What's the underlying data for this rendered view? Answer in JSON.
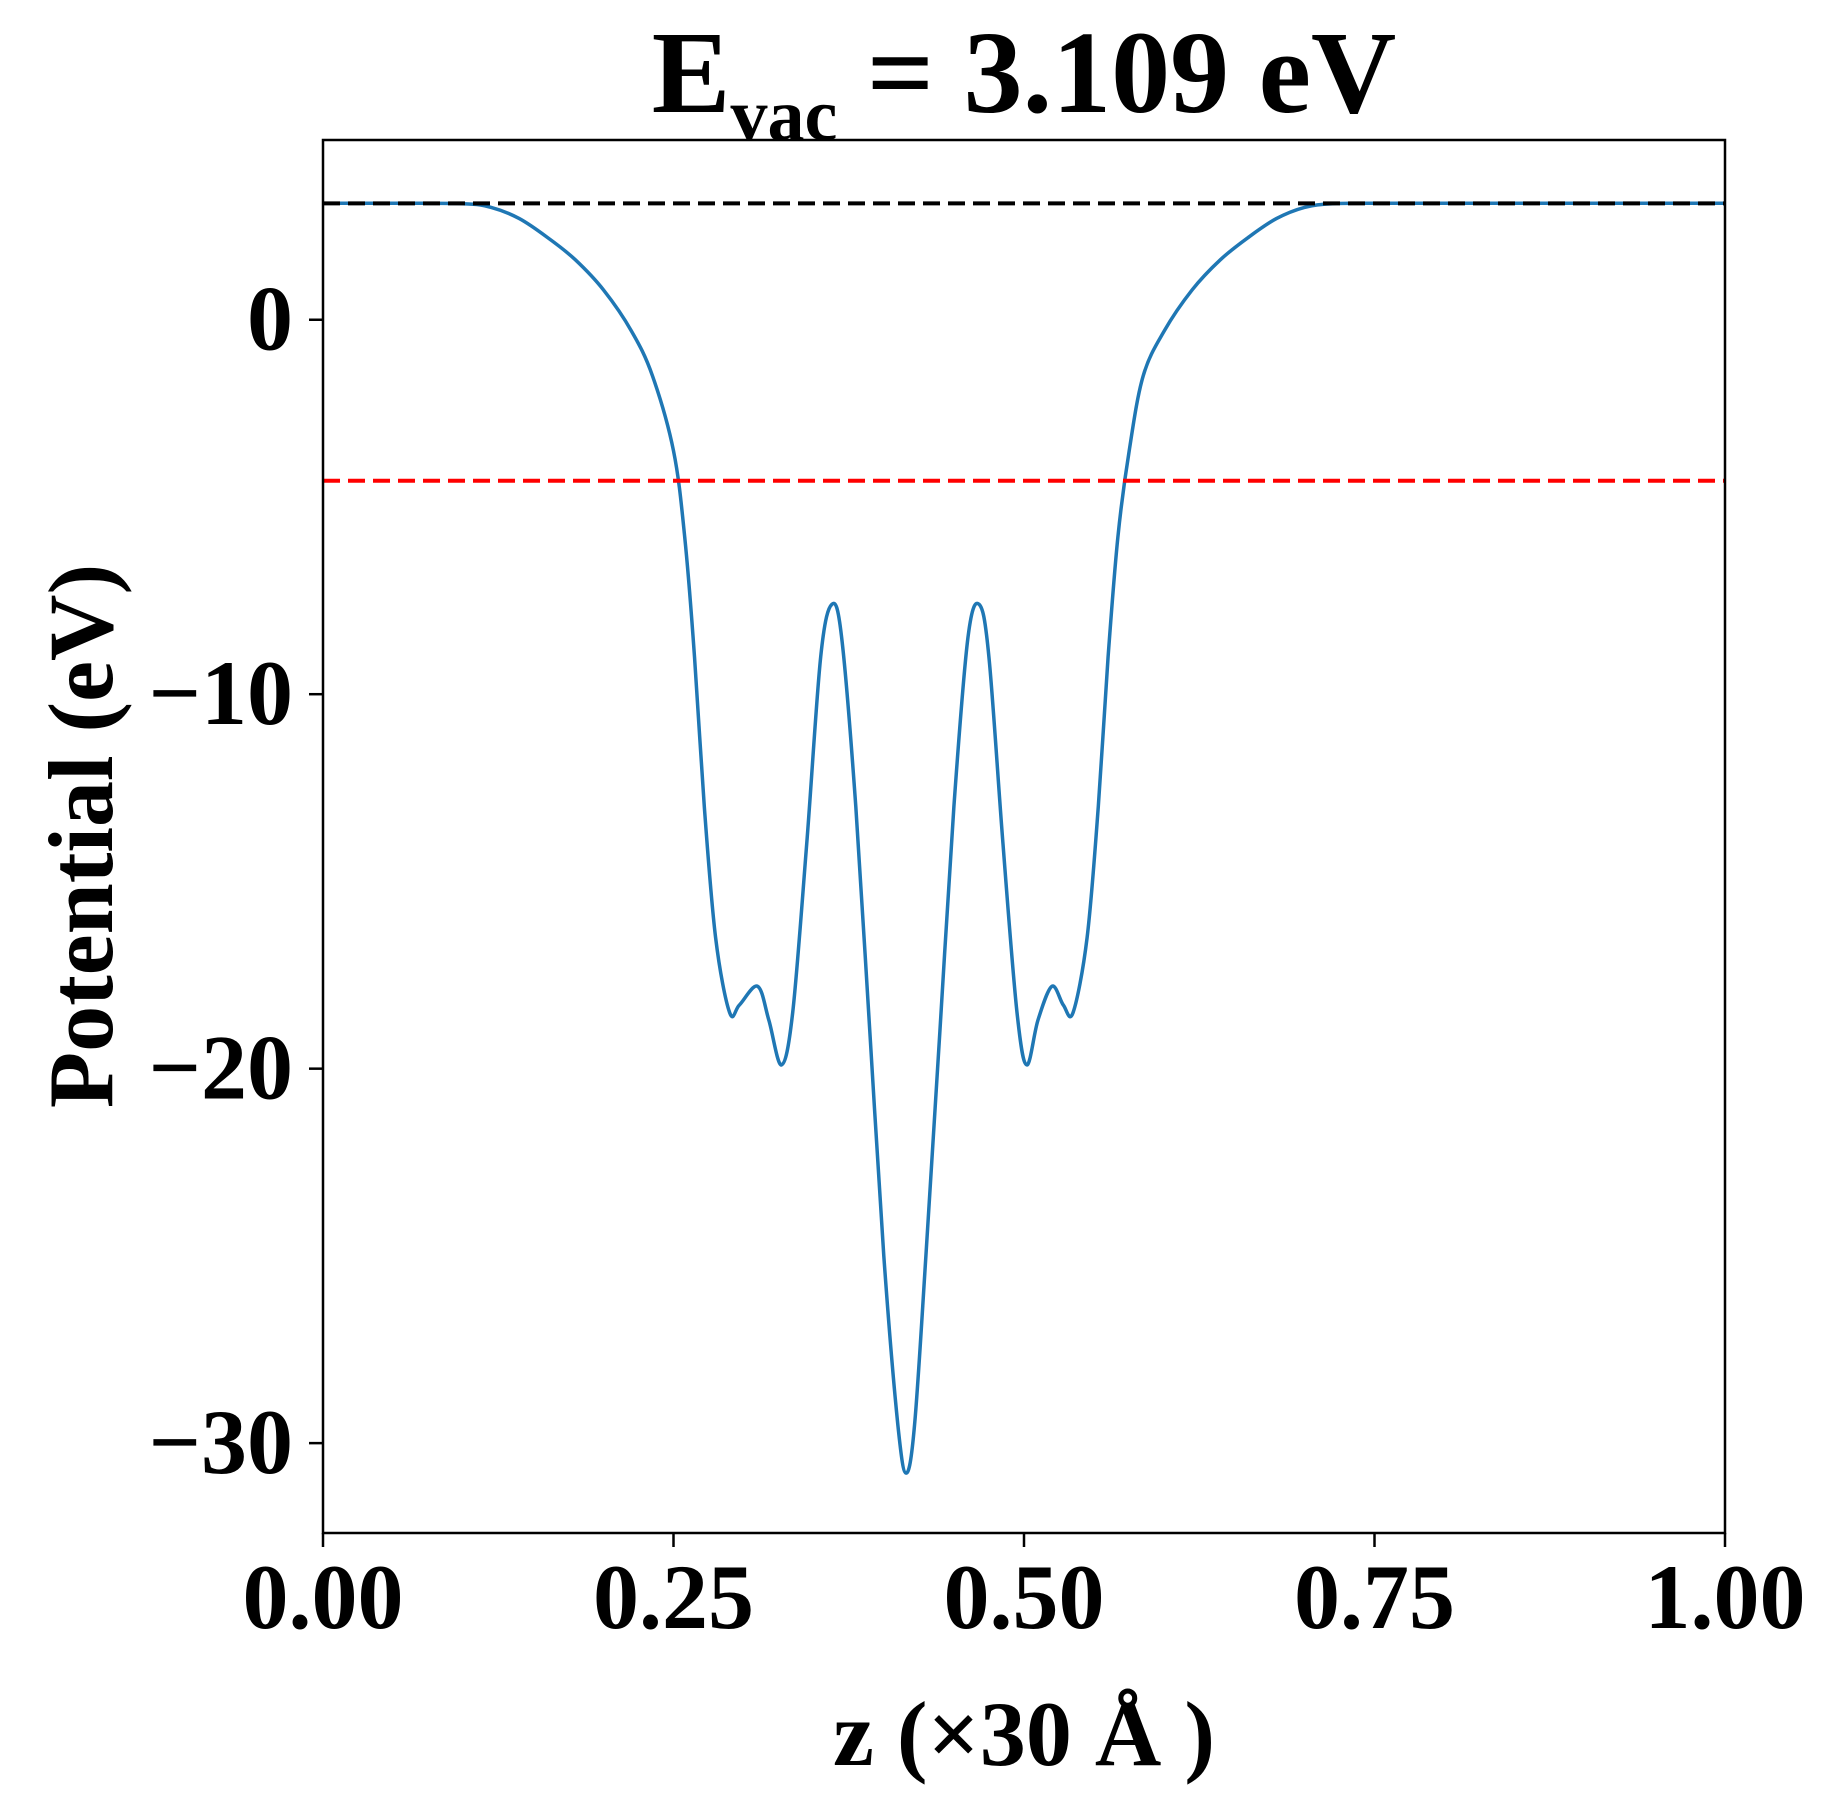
{
  "chart_data": {
    "type": "line",
    "title": {
      "main": "E",
      "subscript": "vac",
      "rest": " = 3.109 eV"
    },
    "xlabel": "z (×30 Å )",
    "ylabel": "Potential (eV)",
    "xlim": [
      0.0,
      1.0
    ],
    "ylim": [
      -32.4,
      4.8
    ],
    "xticks": [
      {
        "value": 0.0,
        "label": "0.00"
      },
      {
        "value": 0.25,
        "label": "0.25"
      },
      {
        "value": 0.5,
        "label": "0.50"
      },
      {
        "value": 0.75,
        "label": "0.75"
      },
      {
        "value": 1.0,
        "label": "1.00"
      }
    ],
    "yticks": [
      {
        "value": 0,
        "label": "0"
      },
      {
        "value": -10,
        "label": "−10"
      },
      {
        "value": -20,
        "label": "−20"
      },
      {
        "value": -30,
        "label": "−30"
      }
    ],
    "grid": false,
    "legend": "none",
    "colors": {
      "potential": "#1f77b4",
      "vacuum_level": "#000000",
      "fermi_level": "#ff0000"
    },
    "reference_lines": [
      {
        "y": 3.109,
        "style": "dashed",
        "color": "#000000",
        "xrange": [
          0.0,
          1.0
        ]
      },
      {
        "y": -4.3,
        "style": "dashed",
        "color": "#ff0000",
        "xrange": [
          0.0,
          1.0
        ]
      }
    ],
    "series": [
      {
        "color": "#1f77b4",
        "x": [
          0.0,
          0.05,
          0.1,
          0.12,
          0.14,
          0.16,
          0.18,
          0.2,
          0.22,
          0.235,
          0.25,
          0.258,
          0.265,
          0.272,
          0.28,
          0.29,
          0.297,
          0.31,
          0.318,
          0.327,
          0.335,
          0.345,
          0.355,
          0.363,
          0.37,
          0.38,
          0.39,
          0.4,
          0.41,
          0.416,
          0.422,
          0.43,
          0.44,
          0.45,
          0.46,
          0.468,
          0.475,
          0.485,
          0.495,
          0.502,
          0.51,
          0.52,
          0.528,
          0.535,
          0.545,
          0.553,
          0.56,
          0.567,
          0.575,
          0.585,
          0.6,
          0.62,
          0.64,
          0.66,
          0.68,
          0.7,
          0.72,
          0.75,
          0.8,
          0.9,
          1.0
        ],
        "y": [
          3.11,
          3.11,
          3.1,
          3.0,
          2.7,
          2.2,
          1.6,
          0.8,
          -0.3,
          -1.5,
          -3.5,
          -5.8,
          -9.0,
          -13.0,
          -16.5,
          -18.5,
          -18.3,
          -17.8,
          -18.7,
          -19.9,
          -18.5,
          -14.0,
          -9.0,
          -7.6,
          -8.5,
          -13.0,
          -19.0,
          -25.0,
          -29.5,
          -30.8,
          -29.5,
          -25.0,
          -19.0,
          -13.0,
          -8.5,
          -7.6,
          -9.0,
          -14.0,
          -18.5,
          -19.9,
          -18.7,
          -17.8,
          -18.3,
          -18.5,
          -16.5,
          -13.0,
          -9.0,
          -5.8,
          -3.5,
          -1.5,
          -0.3,
          0.8,
          1.6,
          2.2,
          2.7,
          3.0,
          3.1,
          3.11,
          3.11,
          3.11,
          3.11
        ]
      }
    ]
  }
}
